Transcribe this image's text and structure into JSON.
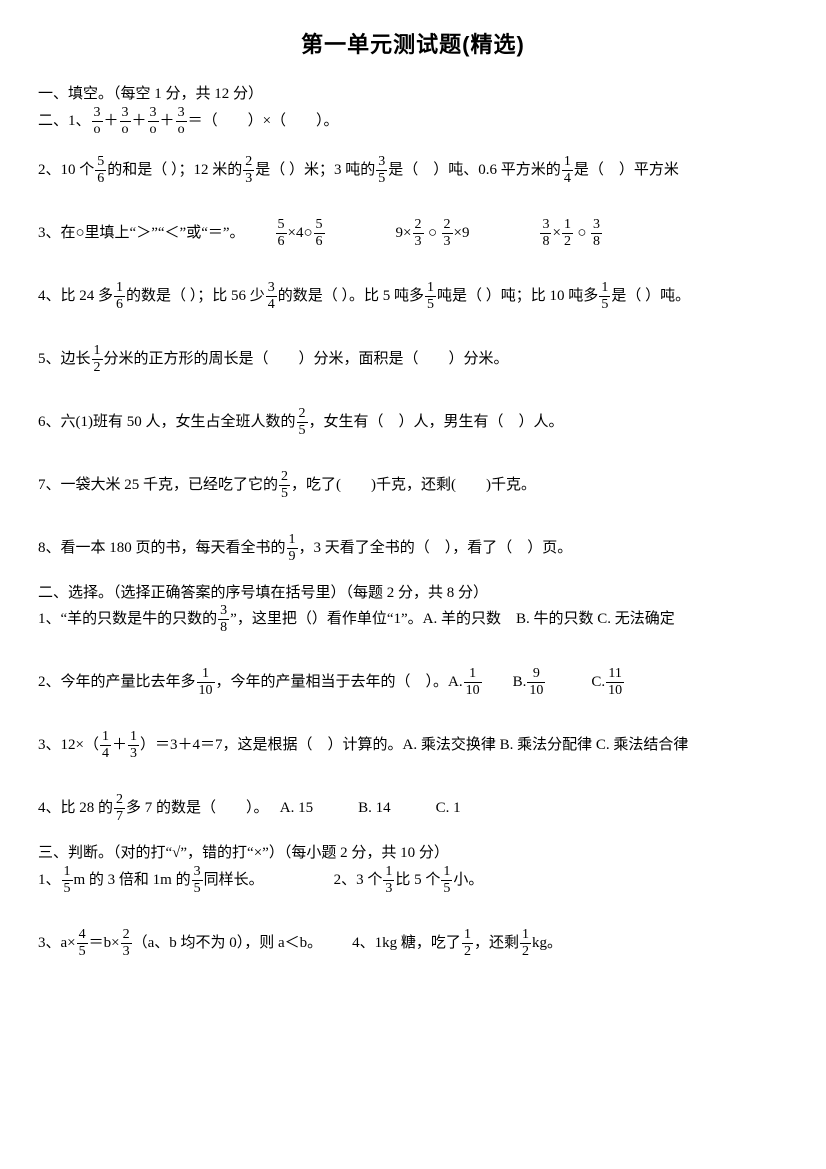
{
  "title": "第一单元测试题(精选)",
  "sec1": {
    "header": "一、填空。（每空 1 分，共 12 分）",
    "q1": {
      "label": "二、1、",
      "frac_n": "3",
      "frac_d": "o",
      "tail": "＝（　　）×（　　）。"
    },
    "q2": {
      "label": "2、10 个",
      "f1n": "5",
      "f1d": "6",
      "p1": " 的和是（ ）；12 米的",
      "f2n": "2",
      "f2d": "3",
      "p2": "是（ ）米；3 吨的",
      "f3n": "3",
      "f3d": "5",
      "p3": "是（　）吨、0.6 平方米的",
      "f4n": "1",
      "f4d": "4",
      "p4": "是（　）平方米"
    },
    "q3": {
      "label": "3、在○里填上“＞”“＜”或“＝”。",
      "a_f1n": "5",
      "a_f1d": "6",
      "a_mid": "×4○",
      "a_f2n": "5",
      "a_f2d": "6",
      "b_pre": "9×",
      "b_f1n": "2",
      "b_f1d": "3",
      "b_mid": "○",
      "b_f2n": "2",
      "b_f2d": "3",
      "b_post": "×9",
      "c_f1n": "3",
      "c_f1d": "8",
      "c_m1": "×",
      "c_f2n": "1",
      "c_f2d": "2",
      "c_m2": "○",
      "c_f3n": "3",
      "c_f3d": "8"
    },
    "q4": {
      "p1": "4、比 24 多",
      "f1n": "1",
      "f1d": "6",
      "p2": "的数是（ ）；比 56 少",
      "f2n": "3",
      "f2d": "4",
      "p3": "的数是（ ）。比 5 吨多",
      "f3n": "1",
      "f3d": "5",
      "p4": "吨是（ ）吨；比 10 吨多",
      "f4n": "1",
      "f4d": "5",
      "p5": "是（ ）吨。"
    },
    "q5": {
      "p1": "5、边长",
      "f1n": "1",
      "f1d": "2",
      "p2": "分米的正方形的周长是（　　）分米，面积是（　　）分米。"
    },
    "q6": {
      "p1": "6、六(1)班有 50 人，女生占全班人数的",
      "f1n": "2",
      "f1d": "5",
      "p2": "，女生有（　）人，男生有（　）人。"
    },
    "q7": {
      "p1": "7、一袋大米 25 千克，已经吃了它的",
      "f1n": "2",
      "f1d": "5",
      "p2": "，吃了(　　)千克，还剩(　　)千克。"
    },
    "q8": {
      "p1": "8、看一本 180 页的书，每天看全书的",
      "f1n": "1",
      "f1d": "9",
      "p2": "，3 天看了全书的（　），看了（　）页。"
    }
  },
  "sec2": {
    "header": "二、选择。（选择正确答案的序号填在括号里）（每题 2 分，共 8 分）",
    "q1": {
      "p1": "1、“羊的只数是牛的只数的",
      "f1n": "3",
      "f1d": "8",
      "p2": "”，这里把（）看作单位“1”。A. 羊的只数　B. 牛的只数 C. 无法确定"
    },
    "q2": {
      "p1": "2、今年的产量比去年多",
      "f1n": "1",
      "f1d": "10",
      "p2": "，今年的产量相当于去年的（　）。A. ",
      "fa_n": "1",
      "fa_d": "10",
      "optB": "　　B. ",
      "fb_n": "9",
      "fb_d": "10",
      "optC": "　　　C. ",
      "fc_n": "11",
      "fc_d": "10"
    },
    "q3": {
      "p1": "3、12×（",
      "f1n": "1",
      "f1d": "4",
      "p2": "＋",
      "f2n": "1",
      "f2d": "3",
      "p3": "）＝3＋4＝7，这是根据（　）计算的。A. 乘法交换律 B. 乘法分配律 C. 乘法结合律"
    },
    "q4": {
      "p1": "4、比 28 的",
      "f1n": "2",
      "f1d": "7",
      "p2": "多 7 的数是（　　）。　 A. 15　　　B. 14　　　C. 1"
    }
  },
  "sec3": {
    "header": "三、判断。（对的打“√”，错的打“×”）（每小题 2 分，共 10 分）",
    "q1": {
      "p1": "1、",
      "f1n": "1",
      "f1d": "5",
      "p2": " m 的 3 倍和 1m 的",
      "f2n": "3",
      "f2d": "5",
      "p3": "同样长。"
    },
    "q2": {
      "p1": "2、3 个",
      "f1n": "1",
      "f1d": "3",
      "p2": "比 5 个",
      "f2n": "1",
      "f2d": "5",
      "p3": "小。"
    },
    "q3": {
      "p1": "3、a×",
      "f1n": "4",
      "f1d": "5",
      "p2": "＝b×",
      "f2n": "2",
      "f2d": "3",
      "p3": "（a、b 均不为 0），则 a＜b。"
    },
    "q4": {
      "p1": "4、1kg 糖，吃了",
      "f1n": "1",
      "f1d": "2",
      "p2": "，还剩",
      "f2n": "1",
      "f2d": "2",
      "p3": "kg。"
    }
  }
}
